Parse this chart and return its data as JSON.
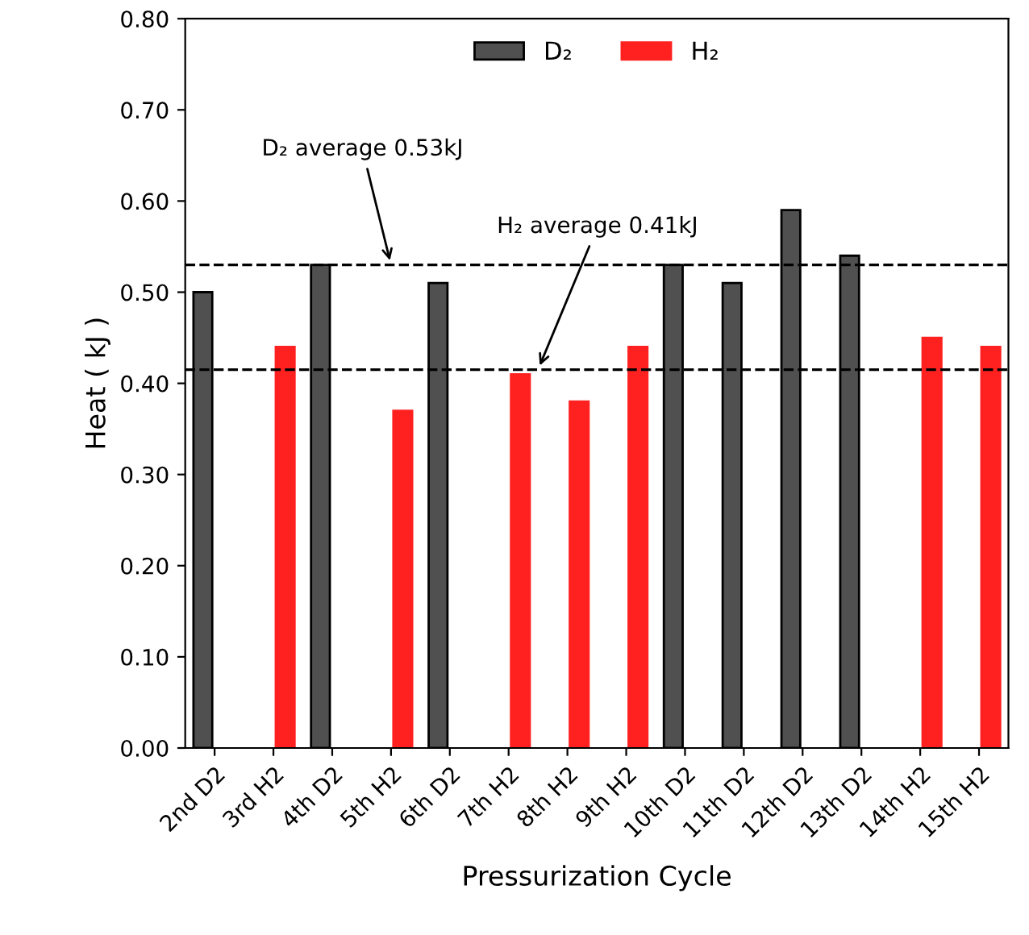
{
  "chart_data": {
    "type": "bar",
    "xlabel": "Pressurization Cycle",
    "ylabel": "Heat ( kJ )",
    "categories": [
      "2nd D2",
      "3rd H2",
      "4th D2",
      "5th H2",
      "6th D2",
      "7th H2",
      "8th H2",
      "9th H2",
      "10th D2",
      "11th D2",
      "12th D2",
      "13th D2",
      "14th H2",
      "15th H2"
    ],
    "series": [
      {
        "name": "D₂",
        "color": "#505050",
        "values": [
          0.5,
          null,
          0.53,
          null,
          0.51,
          null,
          null,
          null,
          0.53,
          0.51,
          0.59,
          0.54,
          null,
          null
        ]
      },
      {
        "name": "H₂",
        "color": "#ff2020",
        "values": [
          null,
          0.44,
          null,
          0.37,
          null,
          0.41,
          0.38,
          0.44,
          null,
          null,
          null,
          null,
          0.45,
          0.44
        ]
      }
    ],
    "ylim": [
      0,
      0.8
    ],
    "yticks": [
      {
        "value": 0,
        "label": "0.00"
      },
      {
        "value": 0.1,
        "label": "0.10"
      },
      {
        "value": 0.2,
        "label": "0.20"
      },
      {
        "value": 0.3,
        "label": "0.30"
      },
      {
        "value": 0.4,
        "label": "0.40"
      },
      {
        "value": 0.5,
        "label": "0.50"
      },
      {
        "value": 0.6,
        "label": "0.60"
      },
      {
        "value": 0.7,
        "label": "0.70"
      },
      {
        "value": 0.8,
        "label": "0.80"
      }
    ],
    "ref_lines": [
      {
        "axis": "y",
        "value": 0.53,
        "label": "D₂ average 0.53kJ",
        "line_style": "dashed",
        "color": "#000000"
      },
      {
        "axis": "y",
        "value": 0.415,
        "label": "H₂ average 0.41kJ",
        "line_style": "dashed",
        "color": "#000000"
      }
    ],
    "legend": "top",
    "grid": false
  }
}
